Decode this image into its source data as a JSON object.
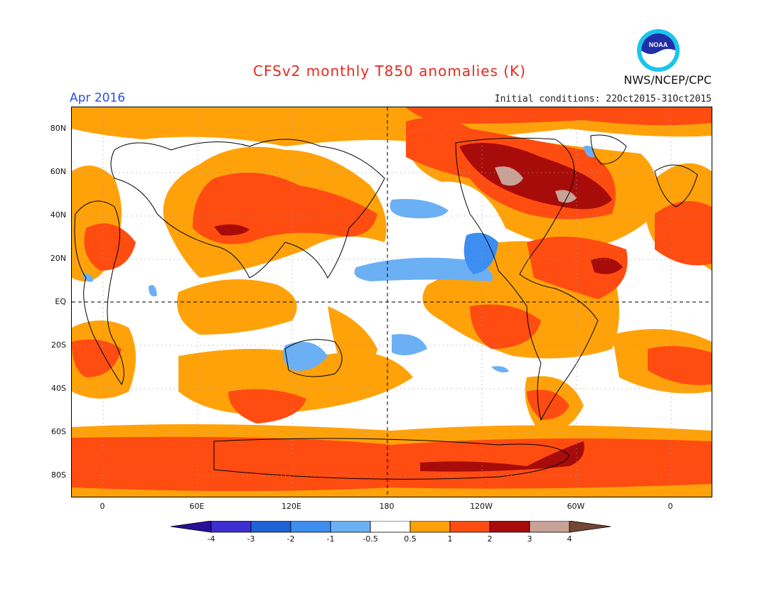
{
  "header": {
    "title": "CFSv2 monthly T850 anomalies (K)",
    "month": "Apr 2016",
    "agency": "NWS/NCEP/CPC",
    "initial_conditions": "Initial conditions: 22Oct2015-31Oct2015",
    "logo_text": "NOAA"
  },
  "axes": {
    "lat_labels": [
      "80N",
      "60N",
      "40N",
      "20N",
      "EQ",
      "20S",
      "40S",
      "60S",
      "80S"
    ],
    "lon_labels": [
      "0",
      "60E",
      "120E",
      "180",
      "120W",
      "60W",
      "0"
    ]
  },
  "colorbar": {
    "labels": [
      "-4",
      "-3",
      "-2",
      "-1",
      "-0.5",
      "0.5",
      "1",
      "2",
      "3",
      "4"
    ],
    "colors": [
      "#2a0f99",
      "#3d2fd0",
      "#1e63d6",
      "#3d8ef0",
      "#6bb0f5",
      "#ffffff",
      "#ffa20a",
      "#ff4c11",
      "#a80c0a",
      "#c8a296",
      "#744634"
    ]
  },
  "palette": {
    "cool1": "#6bb0f5",
    "cool2": "#3d8ef0",
    "warm1": "#ffa20a",
    "warm2": "#ff4c11",
    "warm3": "#a80c0a",
    "warm4": "#c8a296",
    "title_color": "#e8281e",
    "month_color": "#2b4ce8"
  }
}
